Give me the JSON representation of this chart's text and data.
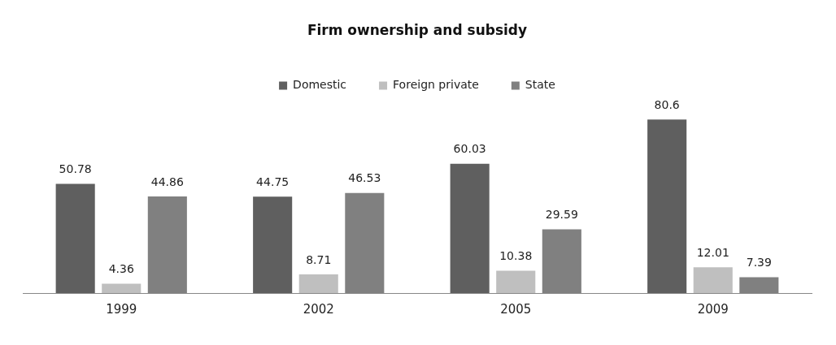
{
  "chart_data": {
    "type": "bar",
    "title": "Firm ownership and subsidy",
    "categories": [
      "1999",
      "2002",
      "2005",
      "2009"
    ],
    "series": [
      {
        "name": "Domestic",
        "color": "#5f5f5f",
        "values": [
          50.78,
          44.75,
          60.03,
          80.6
        ]
      },
      {
        "name": "Foreign private",
        "color": "#bfbfbf",
        "values": [
          4.36,
          8.71,
          10.38,
          12.01
        ]
      },
      {
        "name": "State",
        "color": "#808080",
        "values": [
          44.86,
          46.53,
          29.59,
          7.39
        ]
      }
    ],
    "data_labels": true,
    "legend": "top",
    "grid": false
  }
}
